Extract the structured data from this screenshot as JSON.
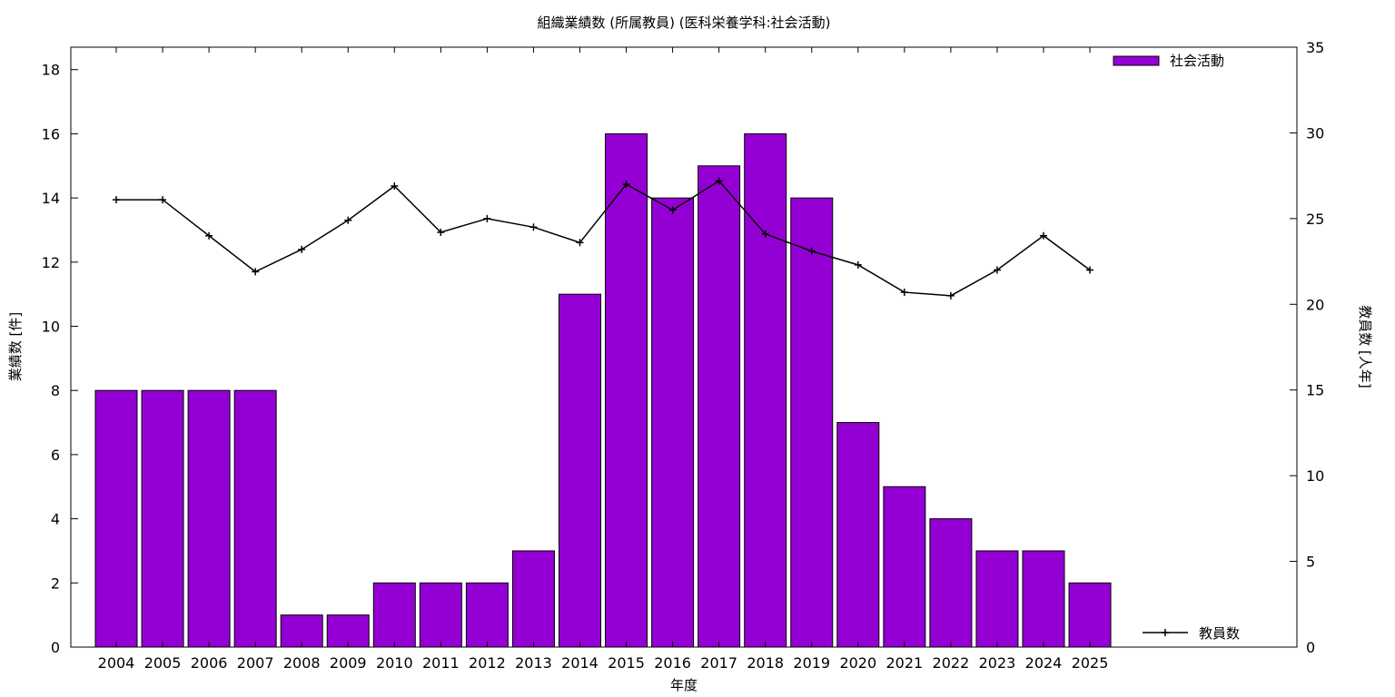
{
  "chart_data": {
    "type": "bar",
    "title": "組織業績数 (所属教員) (医科栄養学科:社会活動)",
    "xlabel": "年度",
    "ylabel": "業績数 [件]",
    "y2label": "教員数 [人年]",
    "categories": [
      "2004",
      "2005",
      "2006",
      "2007",
      "2008",
      "2009",
      "2010",
      "2011",
      "2012",
      "2013",
      "2014",
      "2015",
      "2016",
      "2017",
      "2018",
      "2019",
      "2020",
      "2021",
      "2022",
      "2023",
      "2024",
      "2025"
    ],
    "series": [
      {
        "name": "社会活動",
        "type": "bar",
        "axis": "left",
        "color": "#9400d3",
        "values": [
          8,
          8,
          8,
          8,
          1,
          1,
          2,
          2,
          2,
          3,
          11,
          16,
          14,
          15,
          16,
          14,
          7,
          5,
          4,
          3,
          3,
          2
        ]
      },
      {
        "name": "教員数",
        "type": "line",
        "axis": "right",
        "color": "#000000",
        "values": [
          26.1,
          26.1,
          24.0,
          21.9,
          23.2,
          24.9,
          26.9,
          24.2,
          25.0,
          24.5,
          23.6,
          27.0,
          25.5,
          27.2,
          24.1,
          23.1,
          22.3,
          20.7,
          20.5,
          22.0,
          24.0,
          22.0
        ]
      }
    ],
    "ylim": [
      0,
      18.7
    ],
    "y2lim": [
      0,
      35
    ],
    "yticks": [
      0,
      2,
      4,
      6,
      8,
      10,
      12,
      14,
      16,
      18
    ],
    "y2ticks": [
      0,
      5,
      10,
      15,
      20,
      25,
      30,
      35
    ],
    "legend": {
      "position": "top-right / bottom-right"
    },
    "grid": false
  }
}
